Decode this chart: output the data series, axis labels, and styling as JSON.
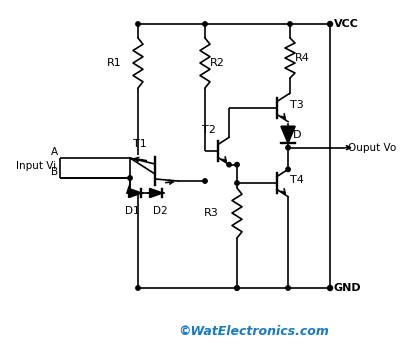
{
  "background_color": "#ffffff",
  "line_color": "#000000",
  "text_color_blue": "#1a7abf",
  "watermark": "©WatElectronics.com",
  "labels": {
    "VCC": "VCC",
    "GND": "GND",
    "R1": "R1",
    "R2": "R2",
    "R3": "R3",
    "R4": "R4",
    "T1": "T1",
    "T2": "T2",
    "T3": "T3",
    "T4": "T4",
    "D": "D",
    "D1": "D1",
    "D2": "D2",
    "InputVi": "Input Vi",
    "A": "A",
    "B": "B",
    "Output": "Ouput Vo"
  }
}
